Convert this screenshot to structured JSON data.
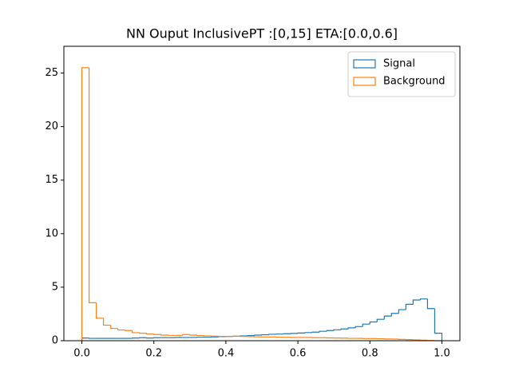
{
  "chart_data": {
    "type": "histogram",
    "title": "NN Ouput InclusivePT :[0,15] ETA:[0.0,0.6]",
    "bins": [
      0,
      0.02,
      0.04,
      0.06,
      0.08,
      0.1,
      0.12,
      0.14,
      0.16,
      0.18,
      0.2,
      0.22,
      0.24,
      0.26,
      0.28,
      0.3,
      0.32,
      0.34,
      0.36,
      0.38,
      0.4,
      0.42,
      0.44,
      0.46,
      0.48,
      0.5,
      0.52,
      0.54,
      0.56,
      0.58,
      0.6,
      0.62,
      0.64,
      0.66,
      0.68,
      0.7,
      0.72,
      0.74,
      0.76,
      0.78,
      0.8,
      0.82,
      0.84,
      0.86,
      0.88,
      0.9,
      0.92,
      0.94,
      0.96,
      0.98,
      1
    ],
    "series": [
      {
        "name": "Signal",
        "color": "#1f77b4",
        "values": [
          0.25,
          0.22,
          0.22,
          0.22,
          0.22,
          0.22,
          0.22,
          0.25,
          0.28,
          0.25,
          0.28,
          0.28,
          0.28,
          0.3,
          0.3,
          0.3,
          0.32,
          0.33,
          0.35,
          0.38,
          0.4,
          0.42,
          0.45,
          0.48,
          0.52,
          0.56,
          0.6,
          0.62,
          0.65,
          0.68,
          0.72,
          0.76,
          0.8,
          0.88,
          0.95,
          1.02,
          1.1,
          1.2,
          1.32,
          1.55,
          1.75,
          2.0,
          2.3,
          2.55,
          2.9,
          3.4,
          3.8,
          3.9,
          3.0,
          0.7
        ]
      },
      {
        "name": "Background",
        "color": "#ff7f0e",
        "values": [
          25.5,
          3.55,
          2.1,
          1.45,
          1.15,
          1.0,
          0.95,
          0.75,
          0.7,
          0.62,
          0.58,
          0.52,
          0.5,
          0.5,
          0.58,
          0.52,
          0.48,
          0.45,
          0.42,
          0.4,
          0.4,
          0.42,
          0.4,
          0.38,
          0.36,
          0.35,
          0.35,
          0.33,
          0.32,
          0.3,
          0.3,
          0.3,
          0.28,
          0.28,
          0.26,
          0.25,
          0.24,
          0.22,
          0.22,
          0.2,
          0.2,
          0.18,
          0.16,
          0.15,
          0.12,
          0.1,
          0.08,
          0.05,
          0.02,
          0.0
        ]
      }
    ],
    "xlim": [
      -0.05,
      1.05
    ],
    "ylim": [
      0,
      27.5
    ],
    "xticks": [
      {
        "value": 0,
        "label": "0.0"
      },
      {
        "value": 0.2,
        "label": "0.2"
      },
      {
        "value": 0.4,
        "label": "0.4"
      },
      {
        "value": 0.6,
        "label": "0.6"
      },
      {
        "value": 0.8,
        "label": "0.8"
      },
      {
        "value": 1,
        "label": "1.0"
      }
    ],
    "yticks": [
      0,
      5,
      10,
      15,
      20,
      25
    ],
    "legend": "upper right"
  }
}
